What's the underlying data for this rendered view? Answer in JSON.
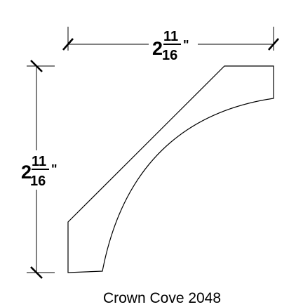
{
  "caption": "Crown Cove 2048",
  "dimensions": {
    "width": {
      "whole": "2",
      "numerator": "11",
      "denominator": "16",
      "unit_mark": "\""
    },
    "height": {
      "whole": "2",
      "numerator": "11",
      "denominator": "16",
      "unit_mark": "\""
    }
  },
  "colors": {
    "line": "#000000",
    "background": "#ffffff"
  }
}
